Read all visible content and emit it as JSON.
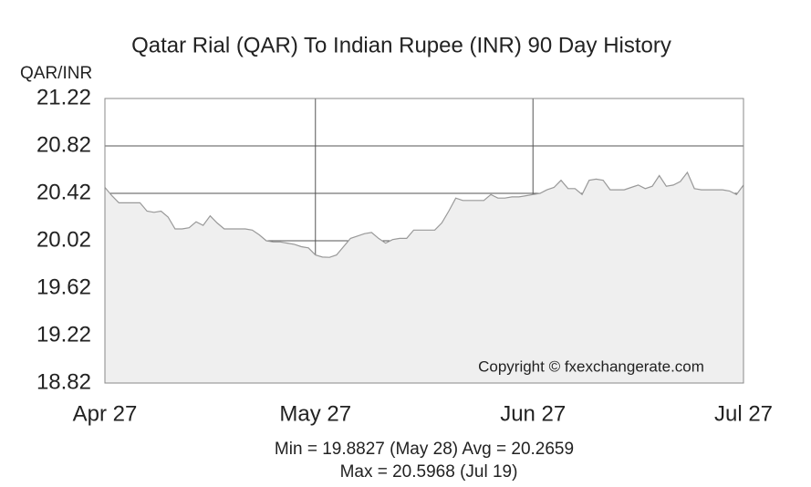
{
  "chart_data": {
    "type": "area",
    "title": "Qatar Rial (QAR) To Indian Rupee (INR) 90 Day History",
    "y_label": "QAR/INR",
    "copyright": "Copyright © fxexchangerate.com",
    "stats": [
      "Min = 19.8827 (May 28) Avg = 20.2659",
      "Max = 20.5968 (Jul 19)"
    ],
    "x": [
      0,
      1,
      2,
      3,
      4,
      5,
      6,
      7,
      8,
      9,
      10,
      11,
      12,
      13,
      14,
      15,
      16,
      17,
      18,
      19,
      20,
      21,
      22,
      23,
      24,
      25,
      26,
      27,
      28,
      29,
      30,
      31,
      32,
      33,
      34,
      35,
      36,
      37,
      38,
      39,
      40,
      41,
      42,
      43,
      44,
      45,
      46,
      47,
      48,
      49,
      50,
      51,
      52,
      53,
      54,
      55,
      56,
      57,
      58,
      59,
      60,
      61,
      62,
      63,
      64,
      65,
      66,
      67,
      68,
      69,
      70,
      71,
      72,
      73,
      74,
      75,
      76,
      77,
      78,
      79,
      80,
      81,
      82,
      83,
      84,
      85,
      86,
      87,
      88,
      89,
      90,
      91
    ],
    "values": [
      20.47,
      20.4,
      20.34,
      20.34,
      20.34,
      20.34,
      20.27,
      20.26,
      20.27,
      20.22,
      20.12,
      20.12,
      20.13,
      20.18,
      20.15,
      20.23,
      20.17,
      20.12,
      20.12,
      20.12,
      20.12,
      20.11,
      20.07,
      20.02,
      20.01,
      20.01,
      20.0,
      19.99,
      19.97,
      19.96,
      19.9,
      19.8827,
      19.88,
      19.9,
      19.97,
      20.04,
      20.06,
      20.08,
      20.09,
      20.04,
      20.0,
      20.03,
      20.04,
      20.04,
      20.11,
      20.11,
      20.11,
      20.11,
      20.17,
      20.27,
      20.38,
      20.36,
      20.36,
      20.36,
      20.36,
      20.41,
      20.38,
      20.38,
      20.39,
      20.39,
      20.4,
      20.41,
      20.42,
      20.45,
      20.47,
      20.53,
      20.46,
      20.46,
      20.41,
      20.53,
      20.54,
      20.53,
      20.45,
      20.45,
      20.45,
      20.47,
      20.49,
      20.46,
      20.48,
      20.57,
      20.48,
      20.49,
      20.52,
      20.5968,
      20.46,
      20.45,
      20.45,
      20.45,
      20.45,
      20.44,
      20.41,
      20.49
    ],
    "color": "#999999",
    "fill": "#efefef",
    "xlim": [
      0,
      91
    ],
    "xticks": [
      {
        "value": 0,
        "label": "Apr 27"
      },
      {
        "value": 30,
        "label": "May 27"
      },
      {
        "value": 61,
        "label": "Jun 27"
      },
      {
        "value": 91,
        "label": "Jul 27"
      }
    ],
    "ylim": [
      18.82,
      21.22
    ],
    "yticks": [
      18.82,
      19.22,
      19.62,
      20.02,
      20.42,
      20.82,
      21.22
    ],
    "grid": true
  }
}
